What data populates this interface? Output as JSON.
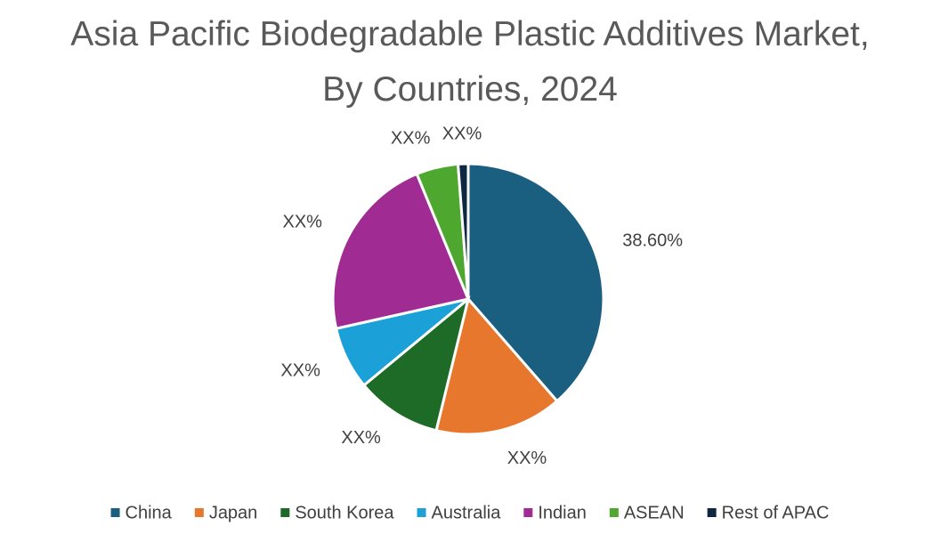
{
  "chart_data": {
    "type": "pie",
    "title": "Asia Pacific Biodegradable Plastic Additives Market, By Countries, 2024",
    "categories": [
      "China",
      "Japan",
      "South Korea",
      "Australia",
      "Indian",
      "ASEAN",
      "Rest of APAC"
    ],
    "values": [
      38.6,
      15.2,
      10.2,
      7.5,
      22.3,
      5,
      1.2
    ],
    "value_labels": [
      "38.60%",
      "XX%",
      "XX%",
      "XX%",
      "XX%",
      "XX%",
      "XX%"
    ],
    "colors": [
      "#1a5e80",
      "#e8772e",
      "#1e6b27",
      "#1ba1d8",
      "#a02b93",
      "#4ea72e",
      "#0e2841"
    ],
    "legend": "bottom"
  }
}
